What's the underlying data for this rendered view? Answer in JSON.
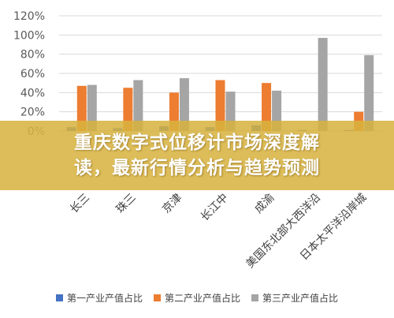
{
  "chart_data": {
    "type": "bar",
    "categories": [
      "长三角",
      "珠三角",
      "京津冀",
      "长江中游",
      "成渝",
      "美国东北部大西洋沿岸城市群",
      "日本太平洋沿岸城市群"
    ],
    "category_display": [
      "长三",
      "珠三",
      "京津",
      "长江中",
      "成渝",
      "美国东北部大西洋沿",
      "日本太平洋沿岸城"
    ],
    "series": [
      {
        "name": "第一产业产值占比",
        "color": "#4472c4",
        "values": [
          4,
          3,
          5,
          4,
          6,
          1,
          1
        ]
      },
      {
        "name": "第二产业产值占比",
        "color": "#ed7d31",
        "values": [
          47,
          45,
          40,
          53,
          50,
          0,
          20
        ]
      },
      {
        "name": "第三产业产值占比",
        "color": "#a5a5a5",
        "values": [
          48,
          53,
          55,
          41,
          42,
          97,
          79
        ]
      }
    ],
    "y_ticks": [
      "0%",
      "20%",
      "40%",
      "60%",
      "80%",
      "100%",
      "120%"
    ],
    "ylim": [
      0,
      120
    ],
    "grid": true,
    "legend": "bottom"
  },
  "banner": {
    "line1": "重庆数字式位移计市场深度解",
    "line2": "读，最新行情分析与趋势预测"
  }
}
